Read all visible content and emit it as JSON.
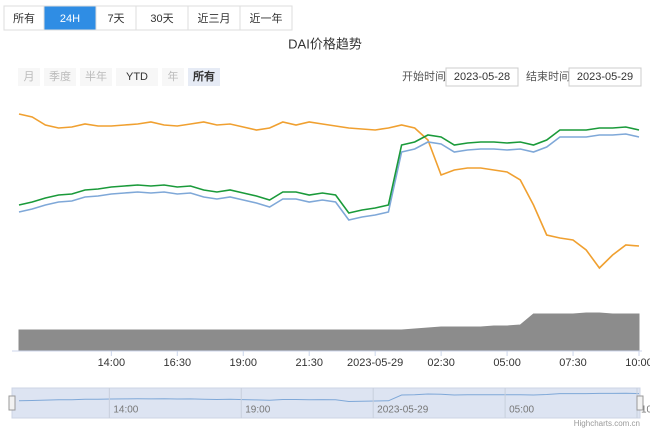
{
  "controls": {
    "tabs": [
      "所有",
      "24H",
      "7天",
      "30天",
      "近三月",
      "近一年"
    ],
    "range_buttons": [
      "月",
      "季度",
      "半年",
      "YTD",
      "年",
      "所有"
    ],
    "start_label": "开始时间",
    "start_value": "2023-05-28",
    "end_label": "结束时间",
    "end_value": "2023-05-29",
    "credits": "Highcharts.com.cn"
  },
  "chart_data": {
    "type": "line",
    "title": "DAI价格趋势",
    "categories": [
      null,
      null,
      null,
      null,
      null,
      null,
      null,
      "14:00",
      null,
      null,
      null,
      null,
      "16:30",
      null,
      null,
      null,
      null,
      "19:00",
      null,
      null,
      null,
      null,
      "21:30",
      null,
      null,
      null,
      null,
      "2023-05-29",
      null,
      null,
      null,
      null,
      "02:30",
      null,
      null,
      null,
      null,
      "05:00",
      null,
      null,
      null,
      null,
      "07:30",
      null,
      null,
      null,
      null,
      "10:00"
    ],
    "ylim": [
      -30,
      220
    ],
    "series": [
      {
        "color": "#f0a030",
        "values": [
          206,
          203,
          195,
          192,
          193,
          196,
          194,
          194,
          195,
          196,
          198,
          195,
          194,
          196,
          198,
          195,
          196,
          193,
          190,
          192,
          198,
          195,
          198,
          196,
          194,
          192,
          191,
          190,
          192,
          195,
          192,
          180,
          145,
          150,
          152,
          152,
          150,
          148,
          140,
          115,
          85,
          82,
          80,
          70,
          52,
          65,
          75,
          74
        ]
      },
      {
        "color": "#7fa8d8",
        "values": [
          108,
          111,
          115,
          118,
          119,
          123,
          124,
          126,
          127,
          128,
          127,
          128,
          126,
          127,
          123,
          121,
          123,
          120,
          117,
          113,
          121,
          121,
          118,
          120,
          118,
          100,
          103,
          105,
          108,
          168,
          171,
          178,
          176,
          168,
          170,
          171,
          171,
          170,
          171,
          168,
          173,
          183,
          183,
          183,
          185,
          185,
          186,
          183
        ]
      },
      {
        "color": "#1a9a3a",
        "values": [
          115,
          118,
          122,
          125,
          126,
          130,
          131,
          133,
          134,
          135,
          134,
          135,
          133,
          134,
          130,
          128,
          130,
          127,
          124,
          120,
          128,
          128,
          125,
          127,
          125,
          107,
          110,
          112,
          115,
          175,
          178,
          185,
          183,
          175,
          177,
          178,
          178,
          177,
          178,
          175,
          180,
          190,
          190,
          190,
          192,
          192,
          193,
          190
        ]
      },
      {
        "type": "area",
        "color": "#8c8c8c",
        "values": [
          -10,
          -10,
          -10,
          -10,
          -10,
          -10,
          -10,
          -10,
          -10,
          -10,
          -10,
          -10,
          -10,
          -10,
          -10,
          -10,
          -10,
          -10,
          -10,
          -10,
          -10,
          -10,
          -10,
          -10,
          -10,
          -10,
          -10,
          -10,
          -10,
          -10,
          -9,
          -8,
          -7,
          -7,
          -7,
          -7,
          -6,
          -6,
          -5,
          6,
          6,
          6,
          6,
          7,
          7,
          6,
          6,
          6
        ]
      }
    ]
  }
}
